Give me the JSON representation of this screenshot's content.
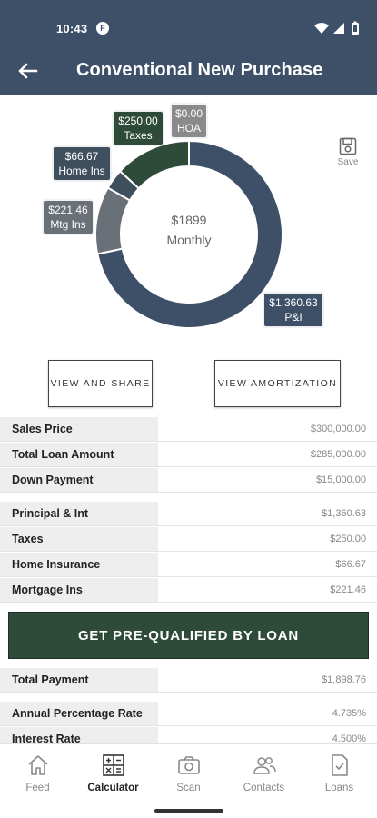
{
  "status_bar": {
    "time": "10:43",
    "badge": "F"
  },
  "header": {
    "title": "Conventional New Purchase",
    "back_icon": "back-arrow-icon"
  },
  "chart_data": {
    "type": "pie",
    "style": "donut",
    "center_value": "$1899",
    "center_label": "Monthly",
    "slices": [
      {
        "label": "P&I",
        "display": "$1,360.63",
        "value": 1360.63,
        "color": "#3d5068"
      },
      {
        "label": "Mtg Ins",
        "display": "$221.46",
        "value": 221.46,
        "color": "#6a7078"
      },
      {
        "label": "Home Ins",
        "display": "$66.67",
        "value": 66.67,
        "color": "#3f4f5e"
      },
      {
        "label": "Taxes",
        "display": "$250.00",
        "value": 250.0,
        "color": "#2e4a39"
      },
      {
        "label": "HOA",
        "display": "$0.00",
        "value": 0.0,
        "color": "#8a8a8a"
      }
    ]
  },
  "save": {
    "label": "Save",
    "icon": "floppy-disk-icon"
  },
  "buttons": {
    "view_share": "VIEW AND SHARE",
    "view_amortization": "VIEW AMORTIZATION"
  },
  "loan_rows": [
    {
      "label": "Sales Price",
      "value": "$300,000.00"
    },
    {
      "label": "Total Loan Amount",
      "value": "$285,000.00"
    },
    {
      "label": "Down Payment",
      "value": "$15,000.00"
    }
  ],
  "payment_rows": [
    {
      "label": "Principal & Int",
      "value": "$1,360.63"
    },
    {
      "label": "Taxes",
      "value": "$250.00"
    },
    {
      "label": "Home Insurance",
      "value": "$66.67"
    },
    {
      "label": "Mortgage Ins",
      "value": "$221.46"
    }
  ],
  "cta": {
    "label": "GET PRE-QUALIFIED BY LOAN"
  },
  "summary_rows": [
    {
      "label": "Total Payment",
      "value": "$1,898.76"
    },
    {
      "label": "Annual Percentage Rate",
      "value": "4.735%"
    },
    {
      "label": "Interest Rate",
      "value": "4.500%"
    }
  ],
  "nav": [
    {
      "label": "Feed",
      "icon": "home-icon",
      "active": false
    },
    {
      "label": "Calculator",
      "icon": "calculator-icon",
      "active": true
    },
    {
      "label": "Scan",
      "icon": "camera-icon",
      "active": false
    },
    {
      "label": "Contacts",
      "icon": "contacts-icon",
      "active": false
    },
    {
      "label": "Loans",
      "icon": "document-check-icon",
      "active": false
    }
  ]
}
